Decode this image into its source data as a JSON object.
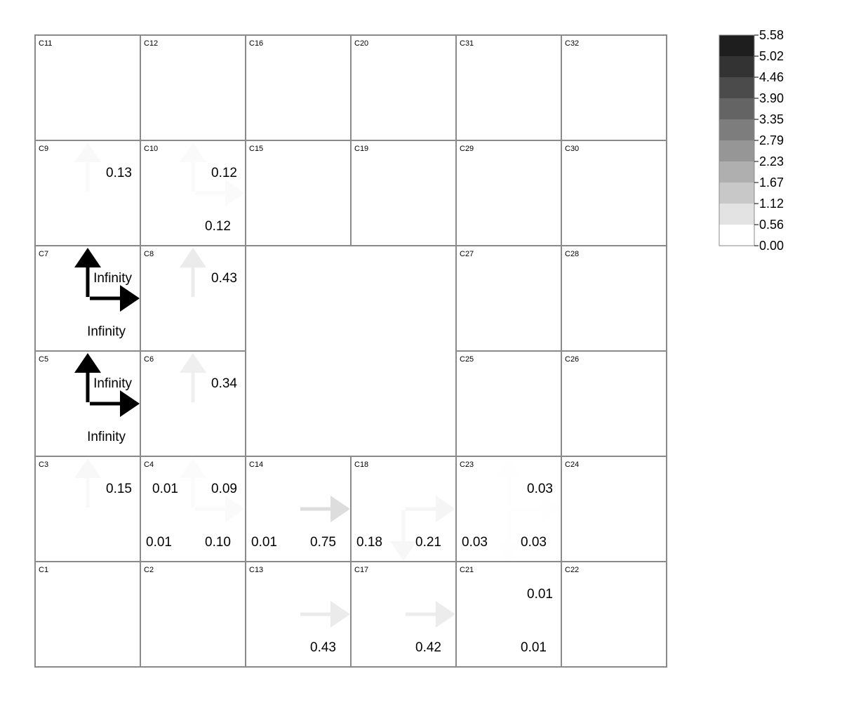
{
  "cells": [
    {
      "id": "C11",
      "col": 0,
      "row": 0
    },
    {
      "id": "C12",
      "col": 1,
      "row": 0
    },
    {
      "id": "C16",
      "col": 2,
      "row": 0
    },
    {
      "id": "C20",
      "col": 3,
      "row": 0
    },
    {
      "id": "C31",
      "col": 4,
      "row": 0
    },
    {
      "id": "C32",
      "col": 5,
      "row": 0
    },
    {
      "id": "C9",
      "col": 0,
      "row": 1
    },
    {
      "id": "C10",
      "col": 1,
      "row": 1
    },
    {
      "id": "C15",
      "col": 2,
      "row": 1
    },
    {
      "id": "C19",
      "col": 3,
      "row": 1
    },
    {
      "id": "C29",
      "col": 4,
      "row": 1
    },
    {
      "id": "C30",
      "col": 5,
      "row": 1
    },
    {
      "id": "C7",
      "col": 0,
      "row": 2
    },
    {
      "id": "C8",
      "col": 1,
      "row": 2
    },
    {
      "id": "C27",
      "col": 4,
      "row": 2
    },
    {
      "id": "C28",
      "col": 5,
      "row": 2
    },
    {
      "id": "C5",
      "col": 0,
      "row": 3
    },
    {
      "id": "C6",
      "col": 1,
      "row": 3
    },
    {
      "id": "C25",
      "col": 4,
      "row": 3
    },
    {
      "id": "C26",
      "col": 5,
      "row": 3
    },
    {
      "id": "C3",
      "col": 0,
      "row": 4
    },
    {
      "id": "C4",
      "col": 1,
      "row": 4
    },
    {
      "id": "C14",
      "col": 2,
      "row": 4
    },
    {
      "id": "C18",
      "col": 3,
      "row": 4
    },
    {
      "id": "C23",
      "col": 4,
      "row": 4
    },
    {
      "id": "C24",
      "col": 5,
      "row": 4
    },
    {
      "id": "C1",
      "col": 0,
      "row": 5
    },
    {
      "id": "C2",
      "col": 1,
      "row": 5
    },
    {
      "id": "C13",
      "col": 2,
      "row": 5
    },
    {
      "id": "C17",
      "col": 3,
      "row": 5
    },
    {
      "id": "C21",
      "col": 4,
      "row": 5
    },
    {
      "id": "C22",
      "col": 5,
      "row": 5
    }
  ],
  "flows": [
    {
      "cell": "C9",
      "dir": "up",
      "value": "0.13",
      "magnitude": 0.13
    },
    {
      "cell": "C10",
      "dir": "up",
      "value": "0.12",
      "magnitude": 0.12
    },
    {
      "cell": "C10",
      "dir": "right",
      "value": "0.12",
      "magnitude": 0.12
    },
    {
      "cell": "C7",
      "dir": "up",
      "value": "Infinity",
      "magnitude": 5.58
    },
    {
      "cell": "C7",
      "dir": "right",
      "value": "Infinity",
      "magnitude": 5.58
    },
    {
      "cell": "C8",
      "dir": "up",
      "value": "0.43",
      "magnitude": 0.43
    },
    {
      "cell": "C5",
      "dir": "up",
      "value": "Infinity",
      "magnitude": 5.58
    },
    {
      "cell": "C5",
      "dir": "right",
      "value": "Infinity",
      "magnitude": 5.58
    },
    {
      "cell": "C6",
      "dir": "up",
      "value": "0.34",
      "magnitude": 0.34
    },
    {
      "cell": "C3",
      "dir": "up",
      "value": "0.15",
      "magnitude": 0.15
    },
    {
      "cell": "C4",
      "dir": "up",
      "value": "0.09",
      "magnitude": 0.09
    },
    {
      "cell": "C4",
      "dir": "right",
      "value": "0.10",
      "magnitude": 0.1
    },
    {
      "cell": "C4",
      "dir": "left",
      "value": "0.01",
      "magnitude": 0.01
    },
    {
      "cell": "C4",
      "dir": "down",
      "value": "0.01",
      "magnitude": 0.01
    },
    {
      "cell": "C14",
      "dir": "right",
      "value": "0.75",
      "magnitude": 0.75
    },
    {
      "cell": "C14",
      "dir": "down",
      "value": "0.01",
      "magnitude": 0.01
    },
    {
      "cell": "C18",
      "dir": "right",
      "value": "0.21",
      "magnitude": 0.21
    },
    {
      "cell": "C18",
      "dir": "down",
      "value": "0.18",
      "magnitude": 0.18
    },
    {
      "cell": "C23",
      "dir": "up",
      "value": "0.03",
      "magnitude": 0.03
    },
    {
      "cell": "C23",
      "dir": "right",
      "value": "0.03",
      "magnitude": 0.03
    },
    {
      "cell": "C23",
      "dir": "down",
      "value": "0.03",
      "magnitude": 0.03
    },
    {
      "cell": "C13",
      "dir": "right",
      "value": "0.43",
      "magnitude": 0.43
    },
    {
      "cell": "C17",
      "dir": "right",
      "value": "0.42",
      "magnitude": 0.42
    },
    {
      "cell": "C21",
      "dir": "up",
      "value": "0.01",
      "magnitude": 0.01
    },
    {
      "cell": "C21",
      "dir": "right",
      "value": "0.01",
      "magnitude": 0.01
    }
  ],
  "color_scale": {
    "ticks": [
      "5.58",
      "5.02",
      "4.46",
      "3.90",
      "3.35",
      "2.79",
      "2.23",
      "1.67",
      "1.12",
      "0.56",
      "0.00"
    ],
    "bands": [
      "#1e1e1e",
      "#333333",
      "#4b4b4b",
      "#646464",
      "#7d7d7d",
      "#969696",
      "#afafaf",
      "#c8c8c8",
      "#e3e3e3",
      "#ffffff"
    ]
  }
}
